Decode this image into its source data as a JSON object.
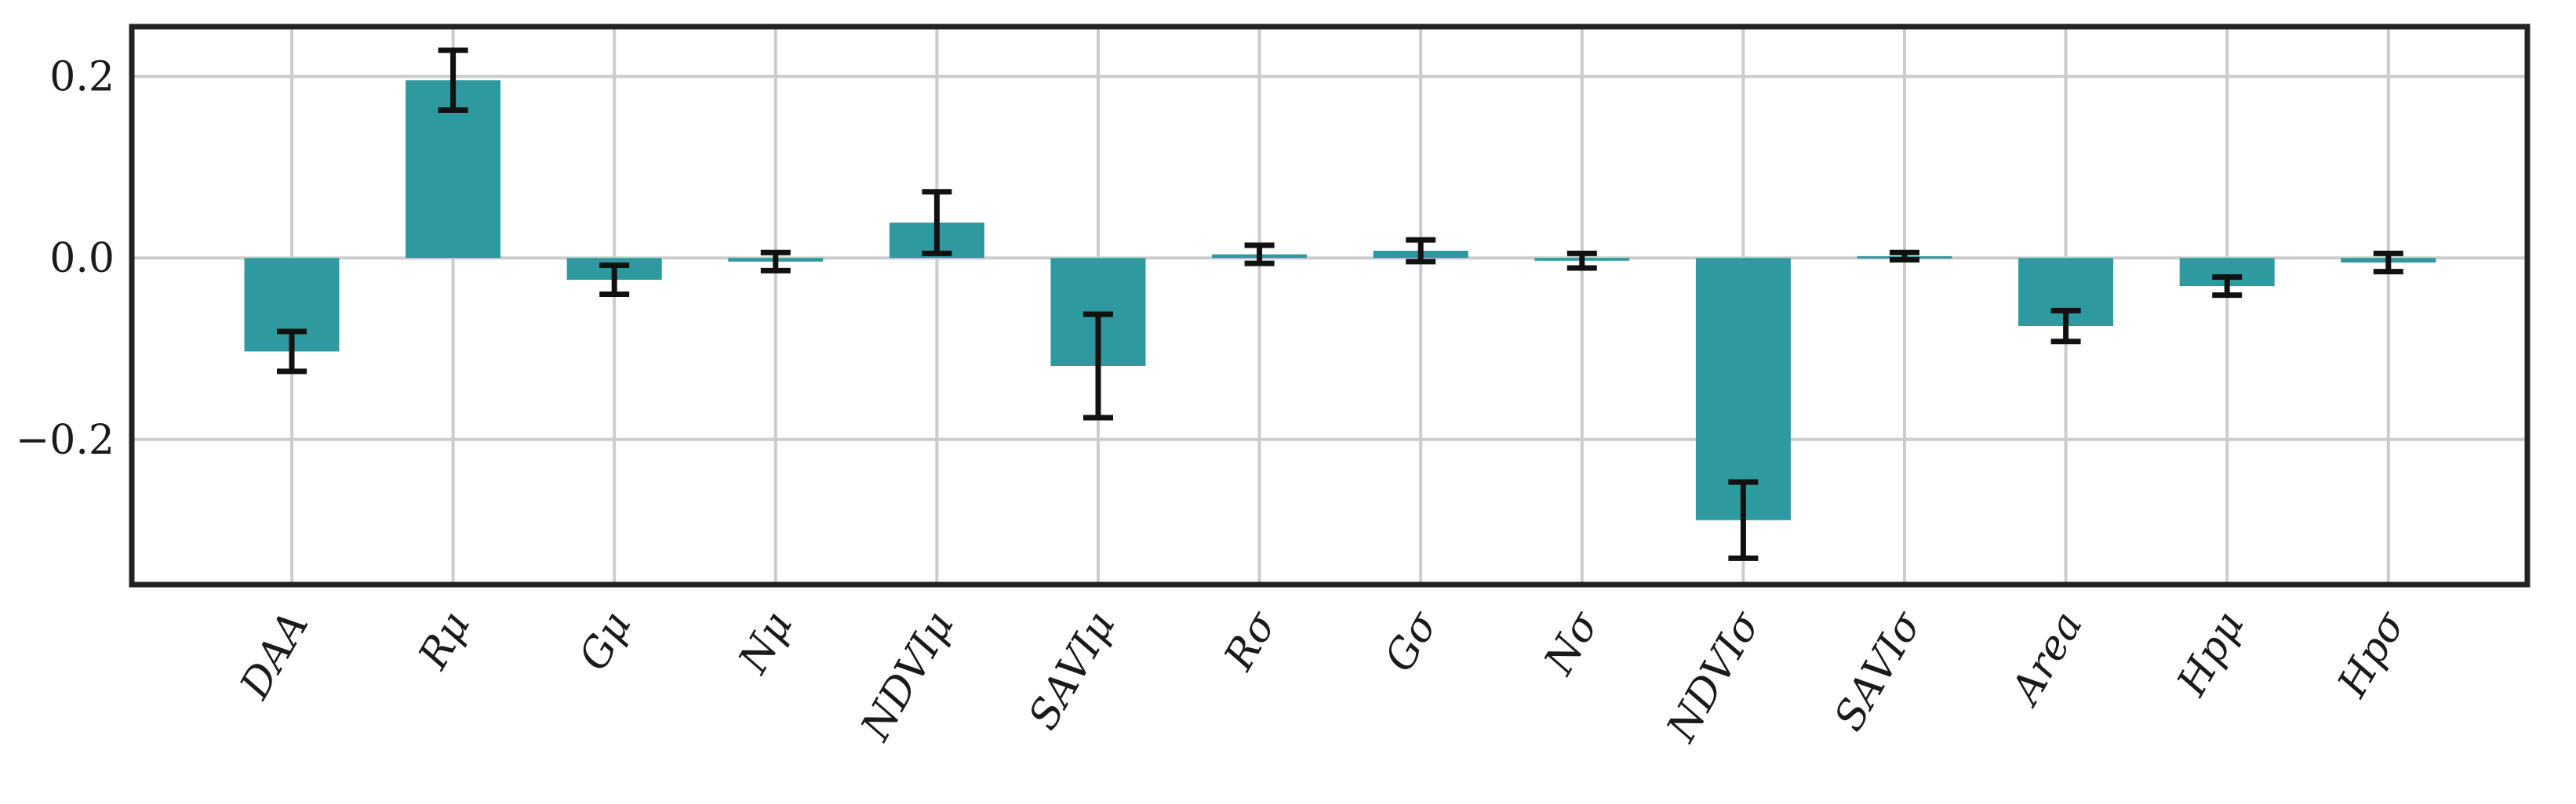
{
  "chart_data": {
    "type": "bar",
    "title": "",
    "xlabel": "",
    "ylabel": "",
    "categories": [
      "DAA",
      "Rμ",
      "Gμ",
      "Nμ",
      "NDVIμ",
      "SAVIμ",
      "Rσ",
      "Gσ",
      "Nσ",
      "NDVIσ",
      "SAVIσ",
      "Area",
      "Hpμ",
      "Hpσ"
    ],
    "series": [
      {
        "values": [
          -0.103,
          0.196,
          -0.024,
          -0.004,
          0.039,
          -0.119,
          0.004,
          0.008,
          -0.003,
          -0.289,
          0.002,
          -0.075,
          -0.031,
          -0.005
        ],
        "error": [
          0.022,
          0.033,
          0.016,
          0.01,
          0.034,
          0.057,
          0.01,
          0.012,
          0.008,
          0.042,
          0.004,
          0.017,
          0.01,
          0.01
        ]
      }
    ],
    "ylim": [
      -0.36,
      0.255
    ],
    "yticks": [
      0.2,
      0.0,
      -0.2
    ],
    "ytick_labels": [
      "0.2",
      "0.0",
      "−0.2"
    ],
    "grid": true,
    "bar_color": "#2e999f",
    "error_color": "#111111"
  }
}
